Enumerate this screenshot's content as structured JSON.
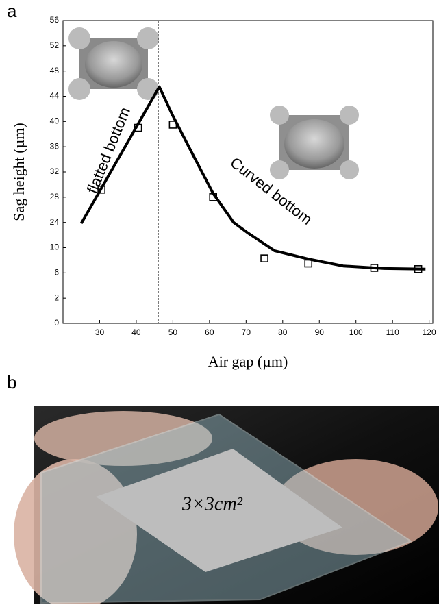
{
  "chart_data": {
    "type": "line",
    "panel_label": "a",
    "xlabel": "Air gap (µm)",
    "ylabel": "Sag height (µm)",
    "xlim": [
      20,
      121
    ],
    "xticks": [
      30,
      40,
      50,
      60,
      70,
      80,
      90,
      100,
      110,
      120
    ],
    "ylim": [
      0,
      56
    ],
    "yticks": [
      0,
      2,
      6,
      10,
      24,
      28,
      32,
      36,
      40,
      44,
      48,
      52,
      56
    ],
    "vline_x": 46,
    "annotations": [
      "flatted bottom",
      "Curved bottom"
    ],
    "series": [
      {
        "marker": "square",
        "color": "#000000",
        "x": [
          30.5,
          40.5,
          50,
          61,
          75,
          87,
          105,
          117
        ],
        "values": [
          29.2,
          39,
          39.5,
          28,
          8.3,
          7.5,
          6.8,
          6.6
        ]
      },
      {
        "marker": "none",
        "color": "#000000",
        "x": [
          25,
          46.3,
          49.9,
          55.5,
          61,
          66.6,
          70.4,
          77.8,
          87,
          96.5,
          107.7,
          119
        ],
        "values": [
          23.5,
          45.5,
          41,
          34.7,
          28.6,
          24,
          18.3,
          9.5,
          8.2,
          7.1,
          6.7,
          6.6
        ]
      }
    ]
  },
  "photo": {
    "panel_label": "b",
    "label": "3×3cm²"
  }
}
